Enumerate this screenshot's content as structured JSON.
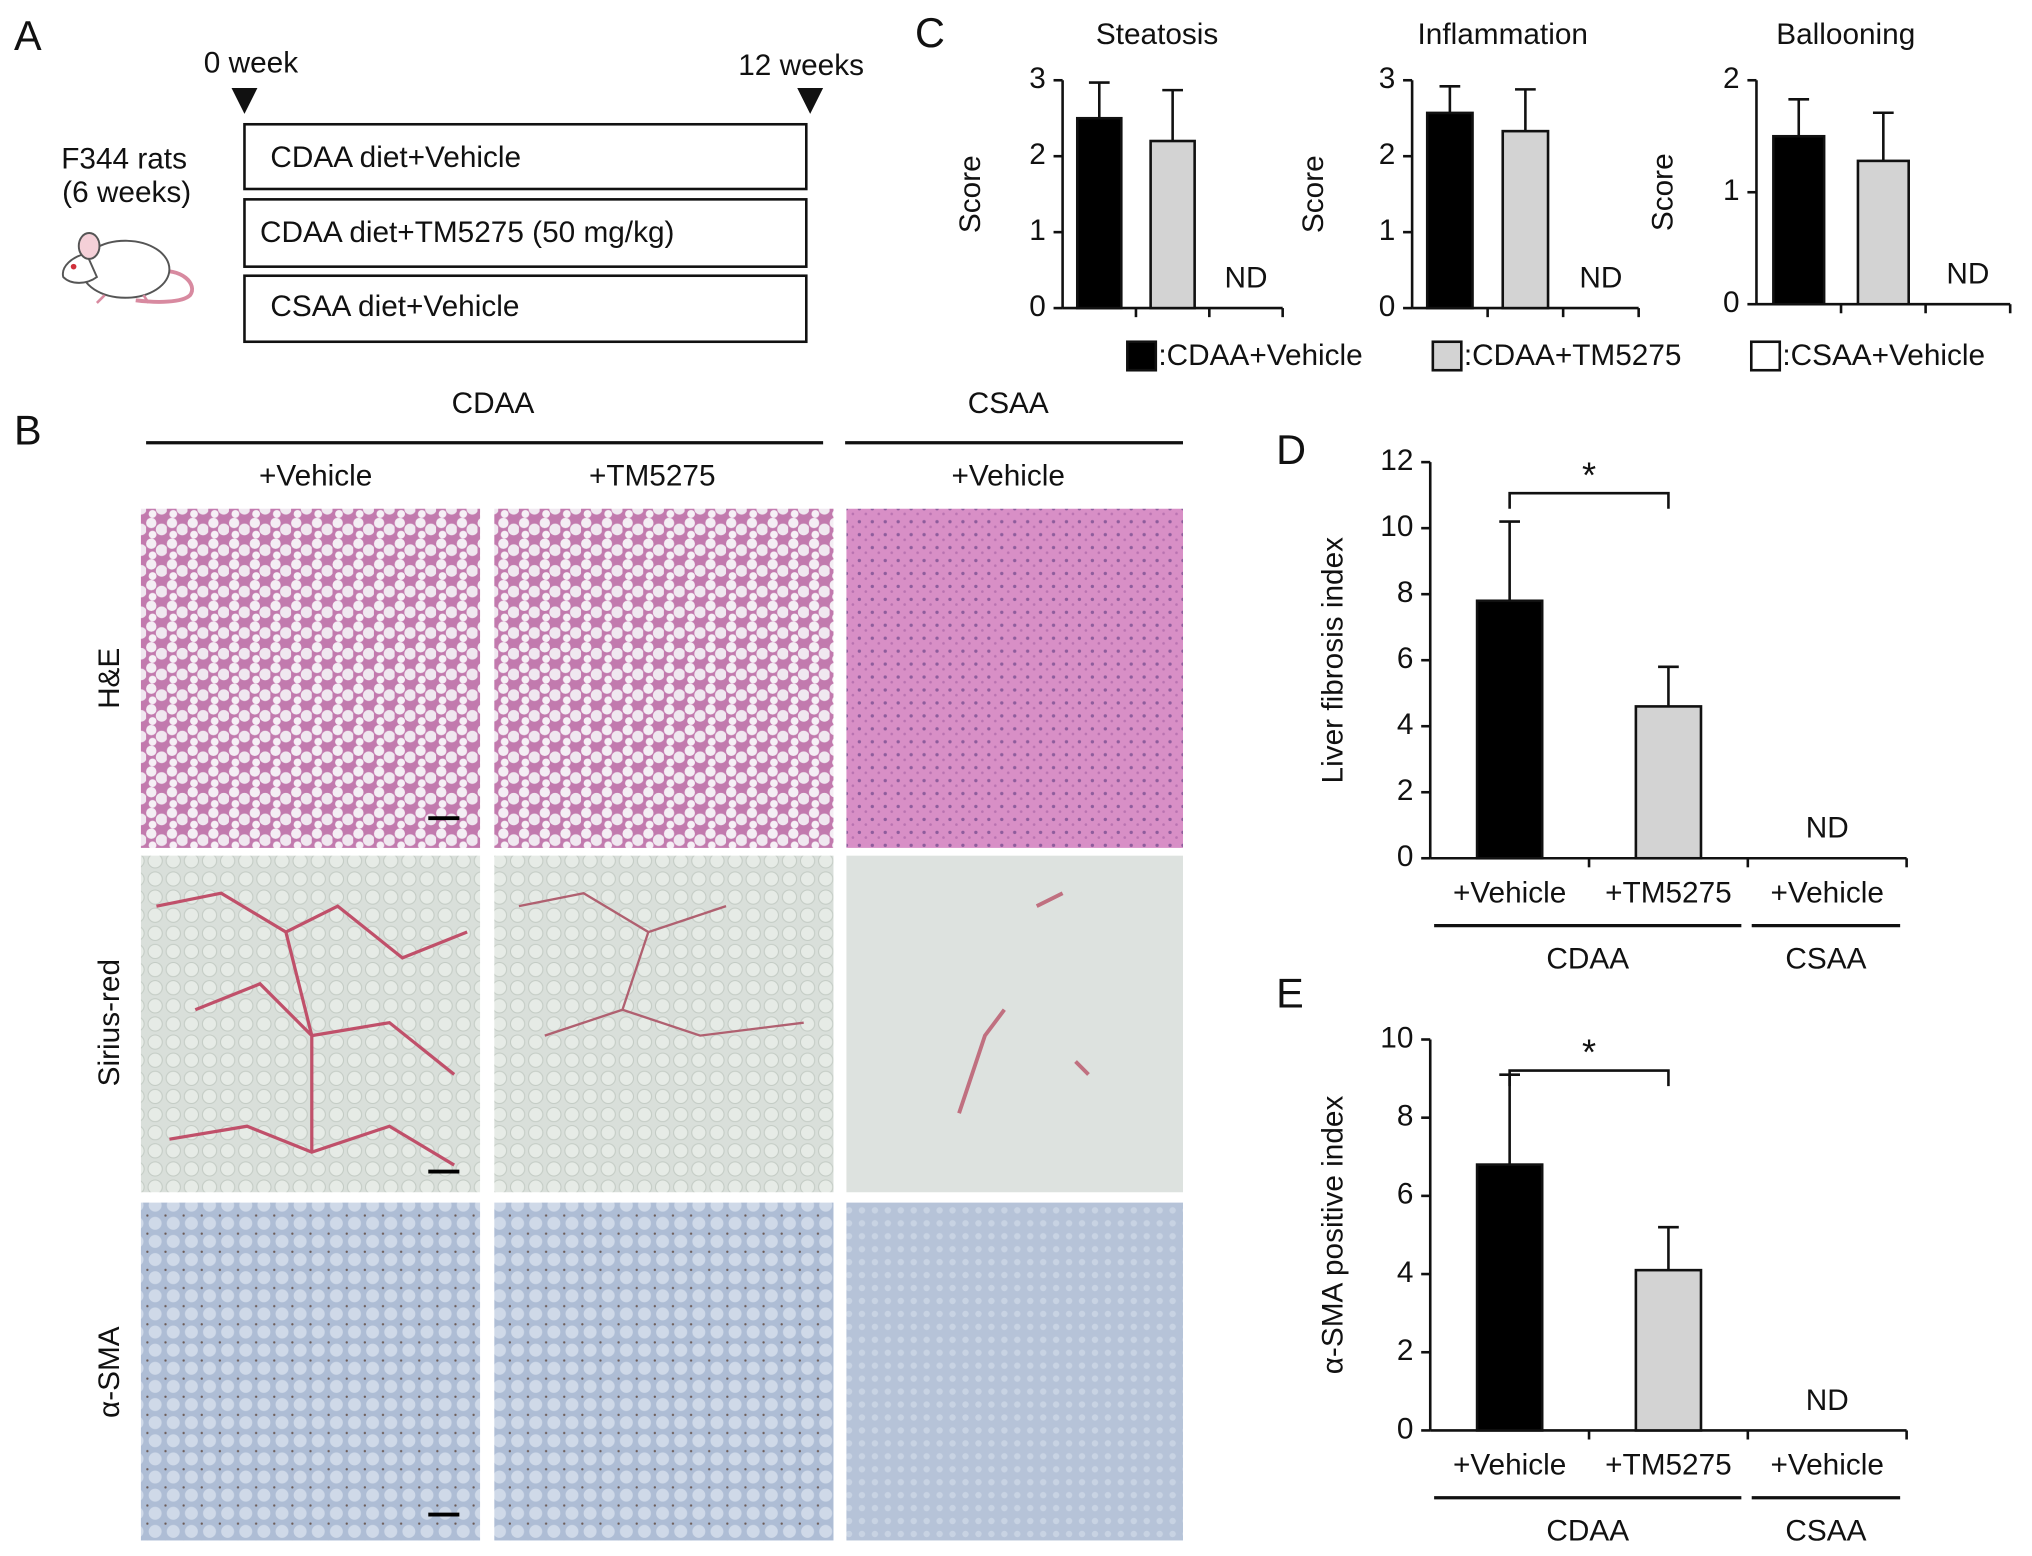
{
  "panel_a": {
    "label": "A",
    "start": "0 week",
    "end": "12 weeks",
    "animal": [
      "F344 rats",
      "(6 weeks)"
    ],
    "groups": [
      "CDAA diet+Vehicle",
      "CDAA diet+TM5275 (50 mg/kg)",
      "CSAA diet+Vehicle"
    ]
  },
  "panel_b": {
    "label": "B",
    "groups": [
      {
        "label": "CDAA",
        "columns": [
          "+Vehicle",
          "+TM5275"
        ]
      },
      {
        "label": "CSAA",
        "columns": [
          "+Vehicle"
        ]
      }
    ],
    "rows": [
      "H&E",
      "Sirius-red",
      "α-SMA"
    ]
  },
  "legend": [
    {
      "label": ":CDAA+Vehicle",
      "color": "#000000"
    },
    {
      "label": ":CDAA+TM5275",
      "color": "#d3d3d3"
    },
    {
      "label": ":CSAA+Vehicle",
      "color": "#ffffff"
    }
  ],
  "chart_data": [
    {
      "type": "bar",
      "panel": "C",
      "title": "Steatosis",
      "ylabel": "Score",
      "values": [
        2.5,
        2.2,
        null
      ],
      "errors": [
        0.47,
        0.67,
        null
      ],
      "value_labels": [
        null,
        null,
        "ND"
      ],
      "ylim": [
        0,
        3
      ],
      "yticks": [
        0,
        1,
        2,
        3
      ]
    },
    {
      "type": "bar",
      "title": "Inflammation",
      "ylabel": "Score",
      "values": [
        2.57,
        2.33,
        null
      ],
      "errors": [
        0.35,
        0.55,
        null
      ],
      "value_labels": [
        null,
        null,
        "ND"
      ],
      "ylim": [
        0,
        3
      ],
      "yticks": [
        0,
        1,
        2,
        3
      ]
    },
    {
      "type": "bar",
      "title": "Ballooning",
      "ylabel": "Score",
      "values": [
        1.5,
        1.28,
        null
      ],
      "errors": [
        0.33,
        0.43,
        null
      ],
      "value_labels": [
        null,
        null,
        "ND"
      ],
      "ylim": [
        0,
        2
      ],
      "yticks": [
        0,
        1,
        2
      ]
    },
    {
      "type": "bar",
      "panel": "D",
      "ylabel": "Liver fibrosis index",
      "groups": [
        {
          "label": "CDAA",
          "categories": [
            "+Vehicle",
            "+TM5275"
          ]
        },
        {
          "label": "CSAA",
          "categories": [
            "+Vehicle"
          ]
        }
      ],
      "values": [
        7.8,
        4.6,
        null
      ],
      "errors": [
        2.4,
        1.2,
        null
      ],
      "value_labels": [
        null,
        null,
        "ND"
      ],
      "ylim": [
        0,
        12
      ],
      "yticks": [
        0,
        2,
        4,
        6,
        8,
        10,
        12
      ],
      "significance": [
        {
          "label": "*",
          "between": [
            0,
            1
          ]
        }
      ]
    },
    {
      "type": "bar",
      "panel": "E",
      "ylabel": "α-SMA positive index",
      "groups": [
        {
          "label": "CDAA",
          "categories": [
            "+Vehicle",
            "+TM5275"
          ]
        },
        {
          "label": "CSAA",
          "categories": [
            "+Vehicle"
          ]
        }
      ],
      "values": [
        6.8,
        4.1,
        null
      ],
      "errors": [
        2.3,
        1.1,
        null
      ],
      "value_labels": [
        null,
        null,
        "ND"
      ],
      "ylim": [
        0,
        10
      ],
      "yticks": [
        0,
        2,
        4,
        6,
        8,
        10
      ],
      "significance": [
        {
          "label": "*",
          "between": [
            0,
            1
          ]
        }
      ]
    }
  ]
}
